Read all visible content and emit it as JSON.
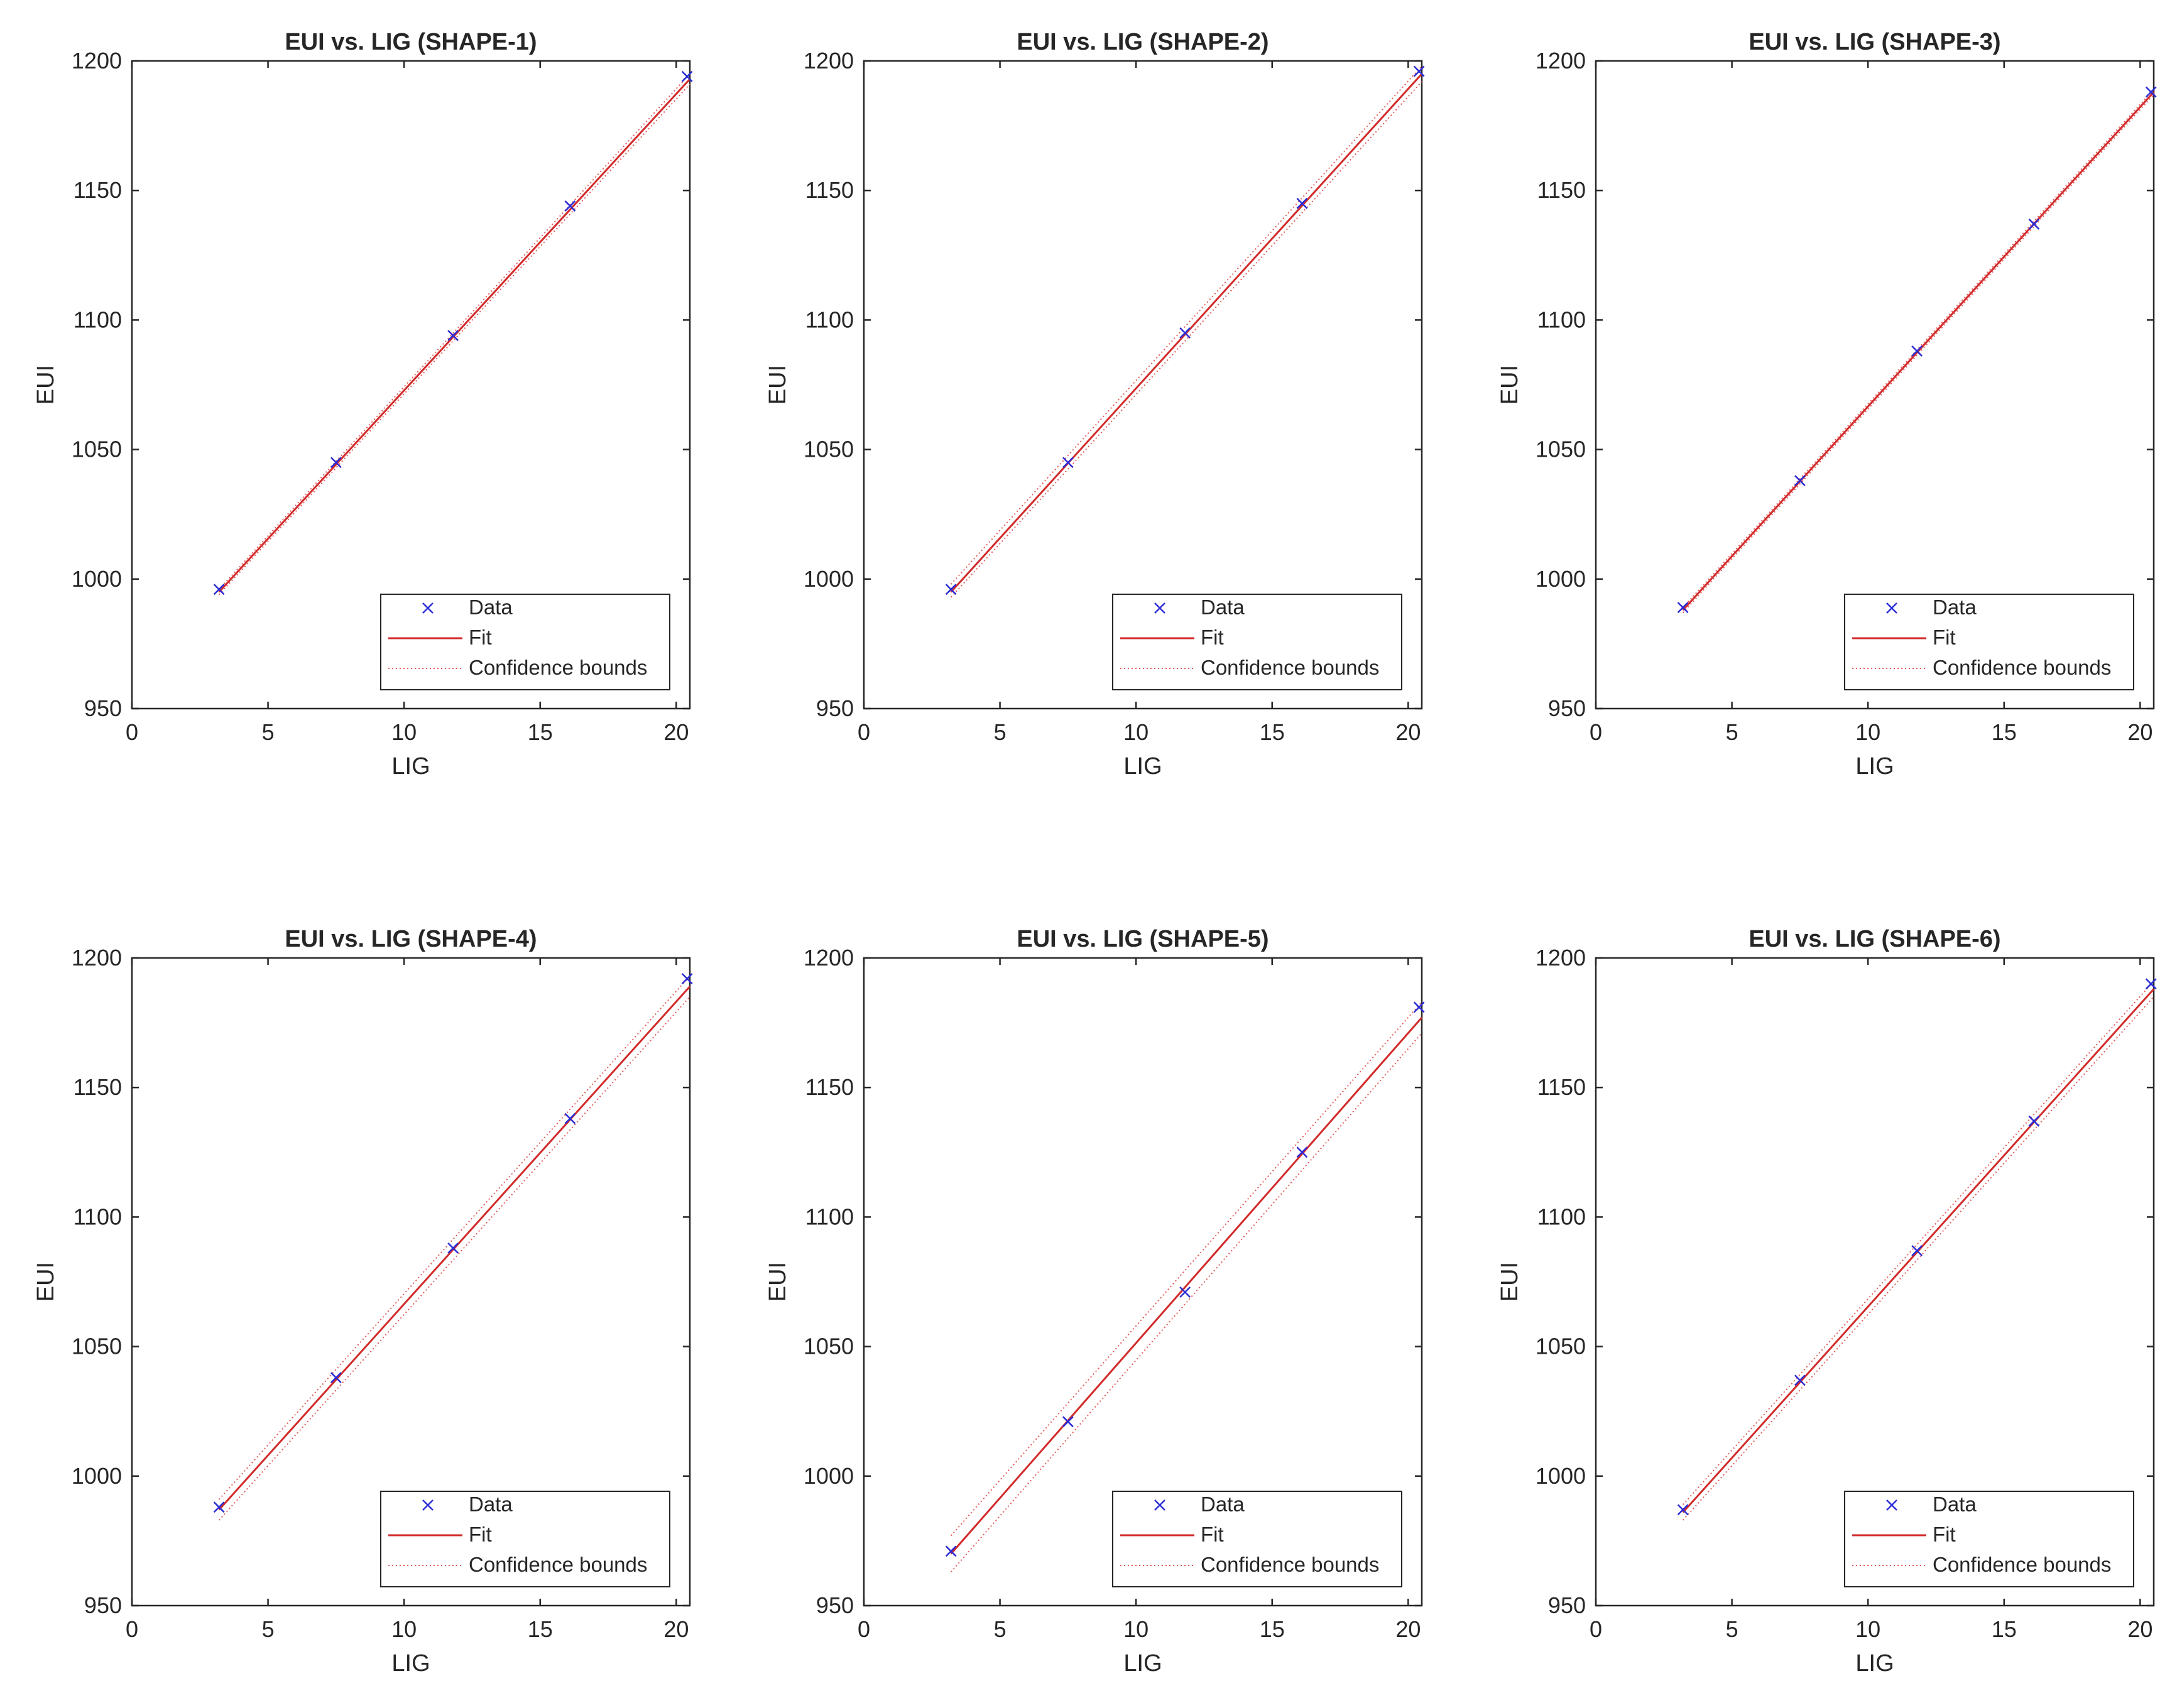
{
  "chart_data": [
    {
      "type": "scatter",
      "title": "EUI vs. LIG (SHAPE-1)",
      "xlabel": "LIG",
      "ylabel": "EUI",
      "xlim": [
        0,
        20.5
      ],
      "ylim": [
        950,
        1200
      ],
      "xticks": [
        0,
        5,
        10,
        15,
        20
      ],
      "yticks": [
        950,
        1000,
        1050,
        1100,
        1150,
        1200
      ],
      "series": [
        {
          "name": "Data",
          "kind": "markers",
          "x": [
            3.2,
            7.5,
            11.8,
            16.1,
            20.4
          ],
          "y": [
            996,
            1045,
            1094,
            1144,
            1194
          ]
        },
        {
          "name": "Fit",
          "kind": "line",
          "x": [
            3.2,
            20.5
          ],
          "y": [
            995,
            1193
          ]
        },
        {
          "name": "Confidence bounds",
          "kind": "dotted",
          "lower": {
            "x": [
              3.2,
              20.5
            ],
            "y": [
              994,
              1191
            ]
          },
          "upper": {
            "x": [
              3.2,
              20.5
            ],
            "y": [
              996,
              1195
            ]
          }
        }
      ],
      "legend": {
        "position": "bottom-right",
        "entries": [
          "Data",
          "Fit",
          "Confidence bounds"
        ]
      }
    },
    {
      "type": "scatter",
      "title": "EUI vs. LIG (SHAPE-2)",
      "xlabel": "LIG",
      "ylabel": "EUI",
      "xlim": [
        0,
        20.5
      ],
      "ylim": [
        950,
        1200
      ],
      "xticks": [
        0,
        5,
        10,
        15,
        20
      ],
      "yticks": [
        950,
        1000,
        1050,
        1100,
        1150,
        1200
      ],
      "series": [
        {
          "name": "Data",
          "kind": "markers",
          "x": [
            3.2,
            7.5,
            11.8,
            16.1,
            20.4
          ],
          "y": [
            996,
            1045,
            1095,
            1145,
            1196
          ]
        },
        {
          "name": "Fit",
          "kind": "line",
          "x": [
            3.2,
            20.5
          ],
          "y": [
            995,
            1195
          ]
        },
        {
          "name": "Confidence bounds",
          "kind": "dotted",
          "lower": {
            "x": [
              3.2,
              20.5
            ],
            "y": [
              993,
              1192
            ]
          },
          "upper": {
            "x": [
              3.2,
              20.5
            ],
            "y": [
              998,
              1198
            ]
          }
        }
      ],
      "legend": {
        "position": "bottom-right",
        "entries": [
          "Data",
          "Fit",
          "Confidence bounds"
        ]
      }
    },
    {
      "type": "scatter",
      "title": "EUI vs. LIG (SHAPE-3)",
      "xlabel": "LIG",
      "ylabel": "EUI",
      "xlim": [
        0,
        20.5
      ],
      "ylim": [
        950,
        1200
      ],
      "xticks": [
        0,
        5,
        10,
        15,
        20
      ],
      "yticks": [
        950,
        1000,
        1050,
        1100,
        1150,
        1200
      ],
      "series": [
        {
          "name": "Data",
          "kind": "markers",
          "x": [
            3.2,
            7.5,
            11.8,
            16.1,
            20.4
          ],
          "y": [
            989,
            1038,
            1088,
            1137,
            1188
          ]
        },
        {
          "name": "Fit",
          "kind": "line",
          "x": [
            3.2,
            20.5
          ],
          "y": [
            988,
            1188
          ]
        },
        {
          "name": "Confidence bounds",
          "kind": "dotted",
          "lower": {
            "x": [
              3.2,
              20.5
            ],
            "y": [
              987,
              1187
            ]
          },
          "upper": {
            "x": [
              3.2,
              20.5
            ],
            "y": [
              989,
              1189
            ]
          }
        }
      ],
      "legend": {
        "position": "bottom-right",
        "entries": [
          "Data",
          "Fit",
          "Confidence bounds"
        ]
      }
    },
    {
      "type": "scatter",
      "title": "EUI vs. LIG (SHAPE-4)",
      "xlabel": "LIG",
      "ylabel": "EUI",
      "xlim": [
        0,
        20.5
      ],
      "ylim": [
        950,
        1200
      ],
      "xticks": [
        0,
        5,
        10,
        15,
        20
      ],
      "yticks": [
        950,
        1000,
        1050,
        1100,
        1150,
        1200
      ],
      "series": [
        {
          "name": "Data",
          "kind": "markers",
          "x": [
            3.2,
            7.5,
            11.8,
            16.1,
            20.4
          ],
          "y": [
            988,
            1038,
            1088,
            1138,
            1192
          ]
        },
        {
          "name": "Fit",
          "kind": "line",
          "x": [
            3.2,
            20.5
          ],
          "y": [
            987,
            1189
          ]
        },
        {
          "name": "Confidence bounds",
          "kind": "dotted",
          "lower": {
            "x": [
              3.2,
              20.5
            ],
            "y": [
              983,
              1185
            ]
          },
          "upper": {
            "x": [
              3.2,
              20.5
            ],
            "y": [
              991,
              1193
            ]
          }
        }
      ],
      "legend": {
        "position": "bottom-right",
        "entries": [
          "Data",
          "Fit",
          "Confidence bounds"
        ]
      }
    },
    {
      "type": "scatter",
      "title": "EUI vs. LIG (SHAPE-5)",
      "xlabel": "LIG",
      "ylabel": "EUI",
      "xlim": [
        0,
        20.5
      ],
      "ylim": [
        950,
        1200
      ],
      "xticks": [
        0,
        5,
        10,
        15,
        20
      ],
      "yticks": [
        950,
        1000,
        1050,
        1100,
        1150,
        1200
      ],
      "series": [
        {
          "name": "Data",
          "kind": "markers",
          "x": [
            3.2,
            7.5,
            11.8,
            16.1,
            20.4
          ],
          "y": [
            971,
            1021,
            1071,
            1125,
            1181
          ]
        },
        {
          "name": "Fit",
          "kind": "line",
          "x": [
            3.2,
            20.5
          ],
          "y": [
            970,
            1177
          ]
        },
        {
          "name": "Confidence bounds",
          "kind": "dotted",
          "lower": {
            "x": [
              3.2,
              20.5
            ],
            "y": [
              963,
              1171
            ]
          },
          "upper": {
            "x": [
              3.2,
              20.5
            ],
            "y": [
              977,
              1183
            ]
          }
        }
      ],
      "legend": {
        "position": "bottom-right",
        "entries": [
          "Data",
          "Fit",
          "Confidence bounds"
        ]
      }
    },
    {
      "type": "scatter",
      "title": "EUI vs. LIG (SHAPE-6)",
      "xlabel": "LIG",
      "ylabel": "EUI",
      "xlim": [
        0,
        20.5
      ],
      "ylim": [
        950,
        1200
      ],
      "xticks": [
        0,
        5,
        10,
        15,
        20
      ],
      "yticks": [
        950,
        1000,
        1050,
        1100,
        1150,
        1200
      ],
      "series": [
        {
          "name": "Data",
          "kind": "markers",
          "x": [
            3.2,
            7.5,
            11.8,
            16.1,
            20.4
          ],
          "y": [
            987,
            1037,
            1087,
            1137,
            1190
          ]
        },
        {
          "name": "Fit",
          "kind": "line",
          "x": [
            3.2,
            20.5
          ],
          "y": [
            986,
            1188
          ]
        },
        {
          "name": "Confidence bounds",
          "kind": "dotted",
          "lower": {
            "x": [
              3.2,
              20.5
            ],
            "y": [
              983,
              1185
            ]
          },
          "upper": {
            "x": [
              3.2,
              20.5
            ],
            "y": [
              989,
              1191
            ]
          }
        }
      ],
      "legend": {
        "position": "bottom-right",
        "entries": [
          "Data",
          "Fit",
          "Confidence bounds"
        ]
      }
    }
  ],
  "colors": {
    "data_marker": "#2b2bd6",
    "fit_line": "#d22a2a",
    "bounds_line": "#e35a5a",
    "axis": "#262626"
  }
}
